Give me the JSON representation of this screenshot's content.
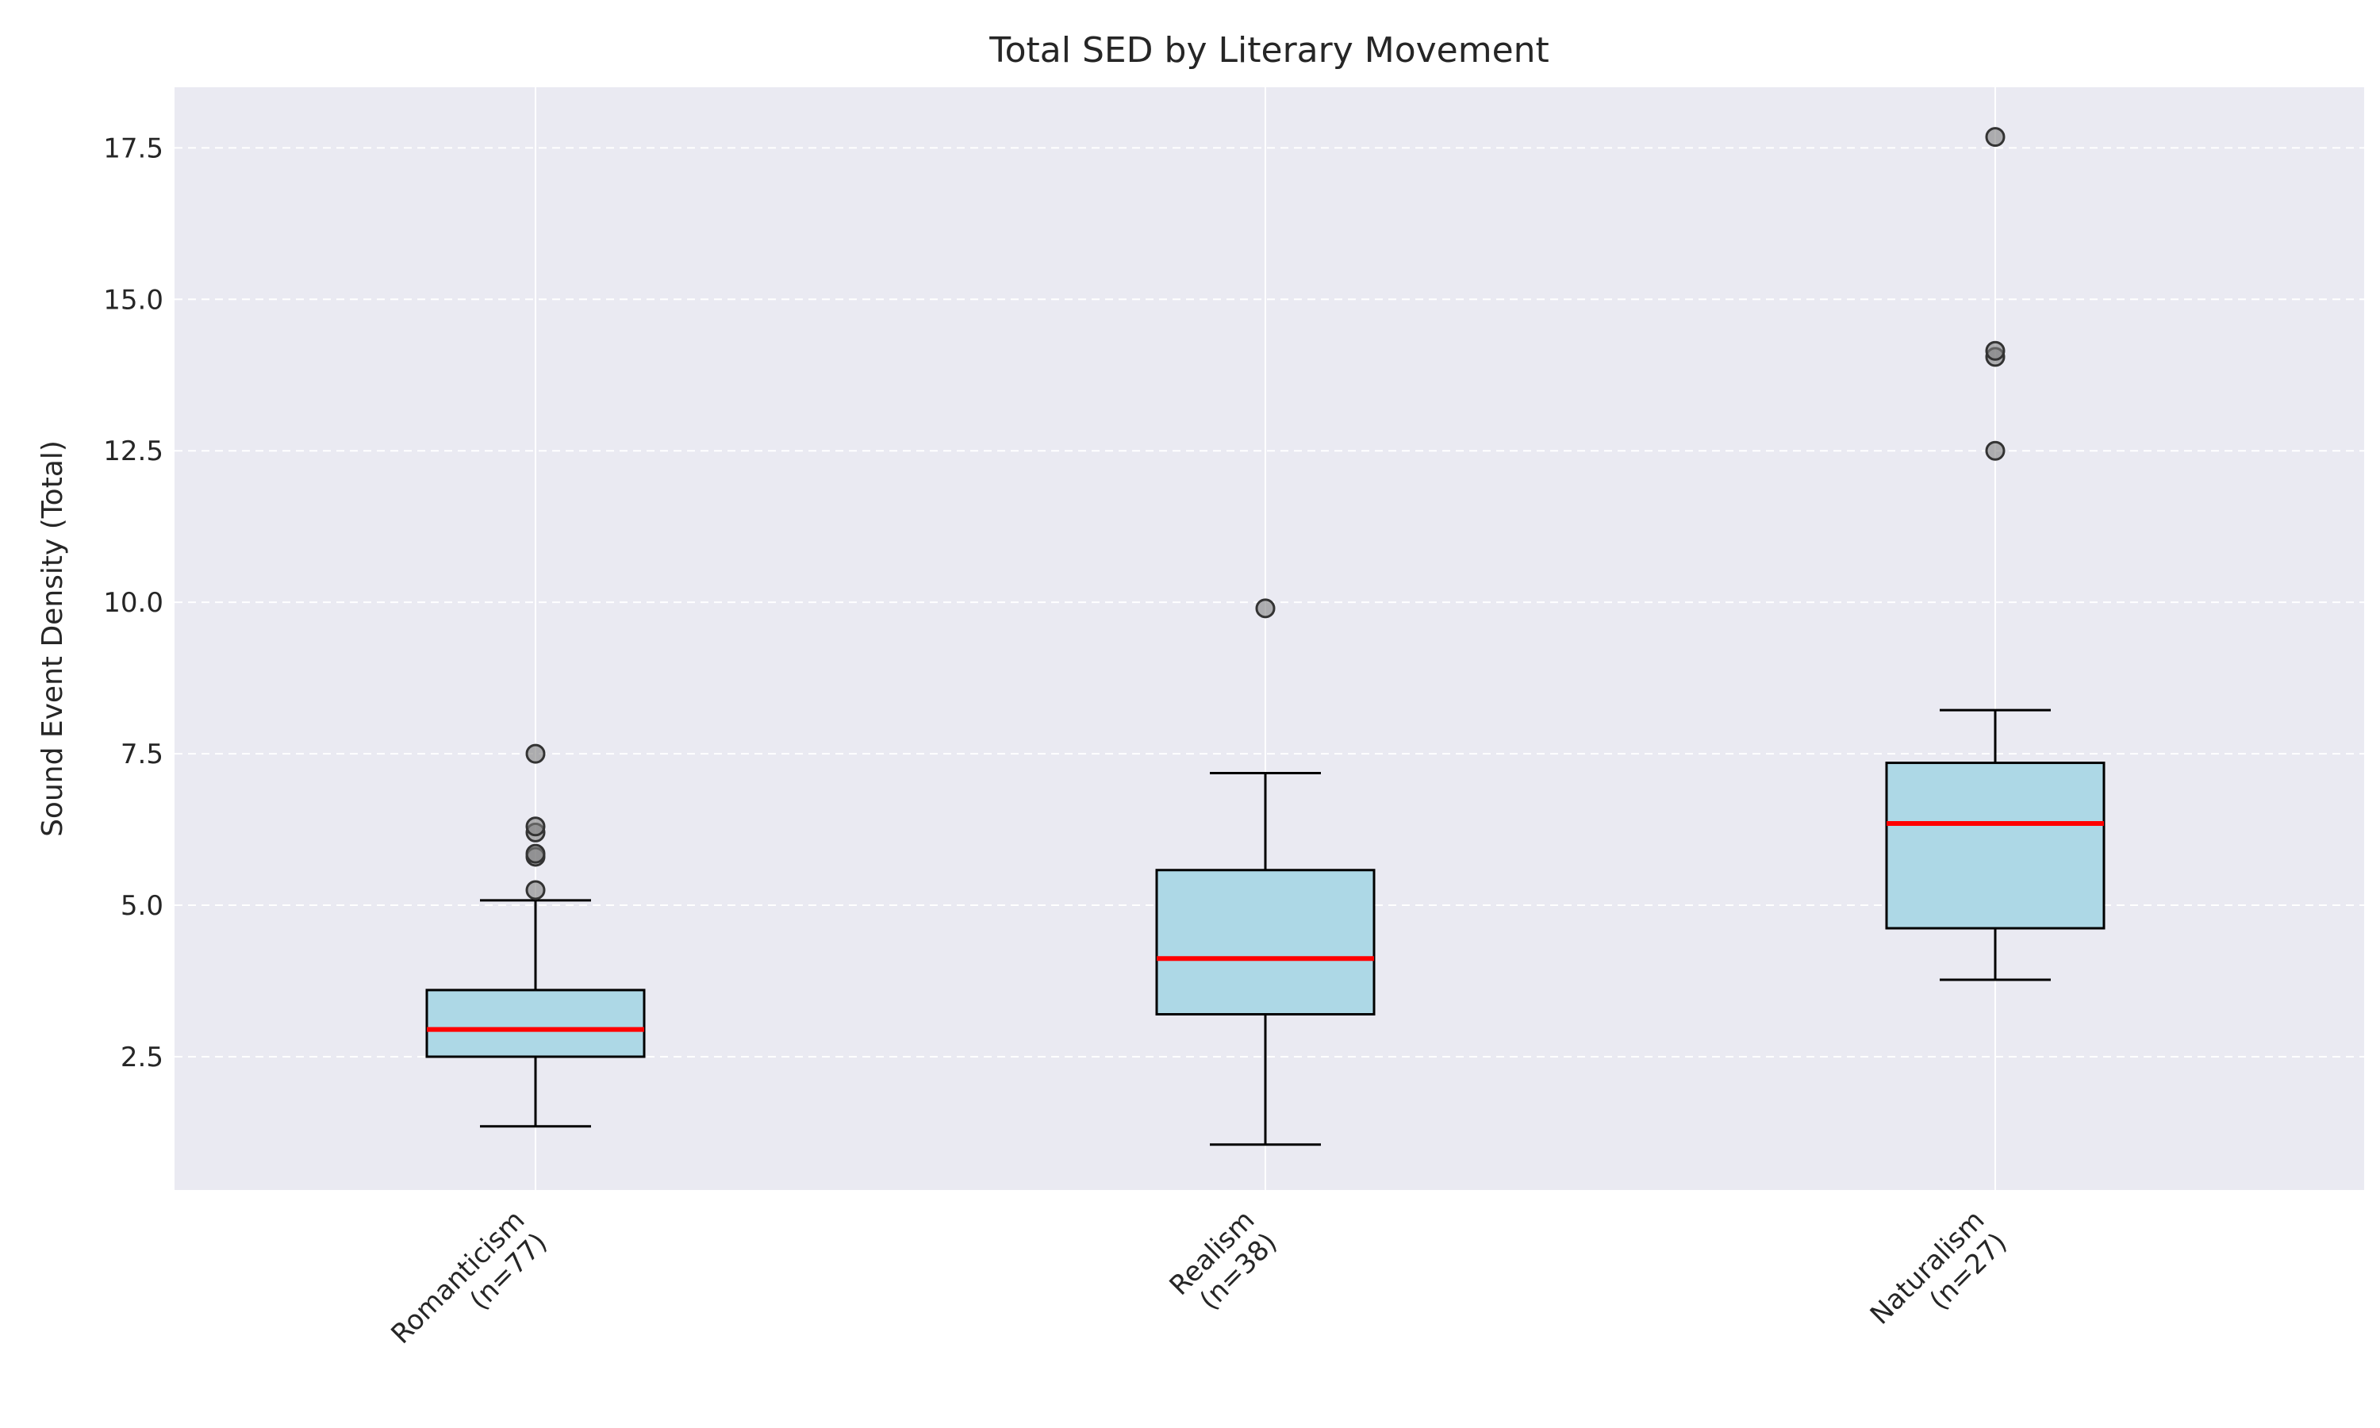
{
  "chart_data": {
    "type": "box",
    "title": "Total SED by Literary Movement",
    "xlabel": "",
    "ylabel": "Sound Event Density (Total)",
    "ylim": [
      0.3,
      18.5
    ],
    "yticks": [
      "2.5",
      "5.0",
      "7.5",
      "10.0",
      "12.5",
      "15.0",
      "17.5"
    ],
    "grid": true,
    "colors": {
      "background": "#eaeaf2",
      "box_fill": "#add8e6",
      "median": "#ff0000",
      "outlier": "#808080"
    },
    "categories": [
      {
        "name": "Romanticism",
        "count": "(n=77)",
        "whisker_low": 1.35,
        "q1": 2.5,
        "median": 2.95,
        "q3": 3.6,
        "whisker_high": 5.08,
        "outliers": [
          5.25,
          5.8,
          5.85,
          6.2,
          6.3,
          7.5
        ]
      },
      {
        "name": "Realism",
        "count": "(n=38)",
        "whisker_low": 1.05,
        "q1": 3.2,
        "median": 4.12,
        "q3": 5.58,
        "whisker_high": 7.18,
        "outliers": [
          9.9
        ]
      },
      {
        "name": "Naturalism",
        "count": "(n=27)",
        "whisker_low": 3.77,
        "q1": 4.62,
        "median": 6.35,
        "q3": 7.35,
        "whisker_high": 8.22,
        "outliers": [
          12.5,
          14.05,
          14.15,
          17.68
        ]
      }
    ]
  }
}
